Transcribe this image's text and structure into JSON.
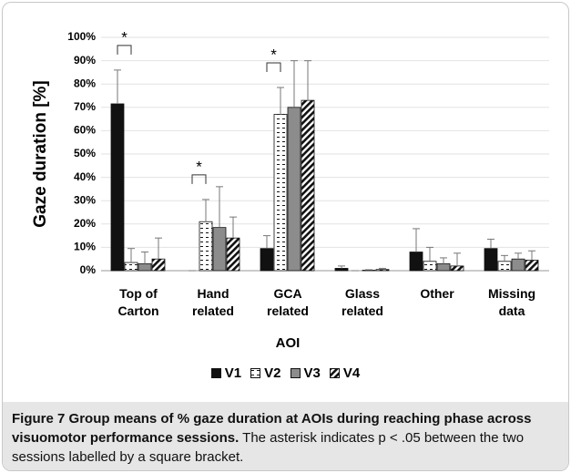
{
  "chart_data": {
    "type": "bar",
    "y_axis_label": "Gaze duration [%]",
    "x_axis_label": "AOI",
    "categories": [
      "Top of Carton",
      "Hand related",
      "GCA related",
      "Glass related",
      "Other",
      "Missing data"
    ],
    "series": [
      {
        "name": "V1",
        "color": "#111111",
        "pattern": "solid",
        "values": [
          71.5,
          0,
          9.5,
          1,
          8,
          9.5
        ],
        "errors": [
          14.5,
          0,
          5.5,
          1,
          10,
          4
        ]
      },
      {
        "name": "V2",
        "color": "#ffffff",
        "pattern": "dashes",
        "values": [
          3.5,
          21,
          67,
          0,
          4,
          4
        ],
        "errors": [
          6,
          9.5,
          11.5,
          0,
          6,
          2.5
        ]
      },
      {
        "name": "V3",
        "color": "#8c8c8c",
        "pattern": "solid",
        "values": [
          3,
          18.5,
          70,
          0.2,
          3,
          5
        ],
        "errors": [
          5,
          17.5,
          20,
          0.2,
          2.5,
          2.5
        ]
      },
      {
        "name": "V4",
        "color": "#ffffff",
        "pattern": "diagonal",
        "values": [
          5,
          14,
          73,
          0.5,
          2,
          4.5
        ],
        "errors": [
          9,
          9,
          17,
          0.5,
          5.5,
          4
        ]
      }
    ],
    "ylim": [
      0,
      100
    ],
    "yticks": [
      {
        "value": 0,
        "label": "0%"
      },
      {
        "value": 10,
        "label": "10%"
      },
      {
        "value": 20,
        "label": "20%"
      },
      {
        "value": 30,
        "label": "30%"
      },
      {
        "value": 40,
        "label": "40%"
      },
      {
        "value": 50,
        "label": "50%"
      },
      {
        "value": 60,
        "label": "60%"
      },
      {
        "value": 70,
        "label": "70%"
      },
      {
        "value": 80,
        "label": "80%"
      },
      {
        "value": 90,
        "label": "90%"
      },
      {
        "value": 100,
        "label": "100%"
      }
    ],
    "grid": true,
    "legend": "bottom",
    "annotations": [
      {
        "text": "*",
        "category": "Top of Carton",
        "between": [
          "V1",
          "V2"
        ]
      },
      {
        "text": "*",
        "category": "Hand related",
        "between": [
          "V1",
          "V2"
        ]
      },
      {
        "text": "*",
        "category": "GCA related",
        "between": [
          "V1",
          "V2"
        ]
      }
    ]
  },
  "caption": {
    "label": "Figure 7",
    "title": "Group means of % gaze duration at AOIs during reaching phase across visuomotor performance sessions.",
    "text": "The asterisk indicates p < .05 between the two sessions labelled by a square bracket."
  }
}
